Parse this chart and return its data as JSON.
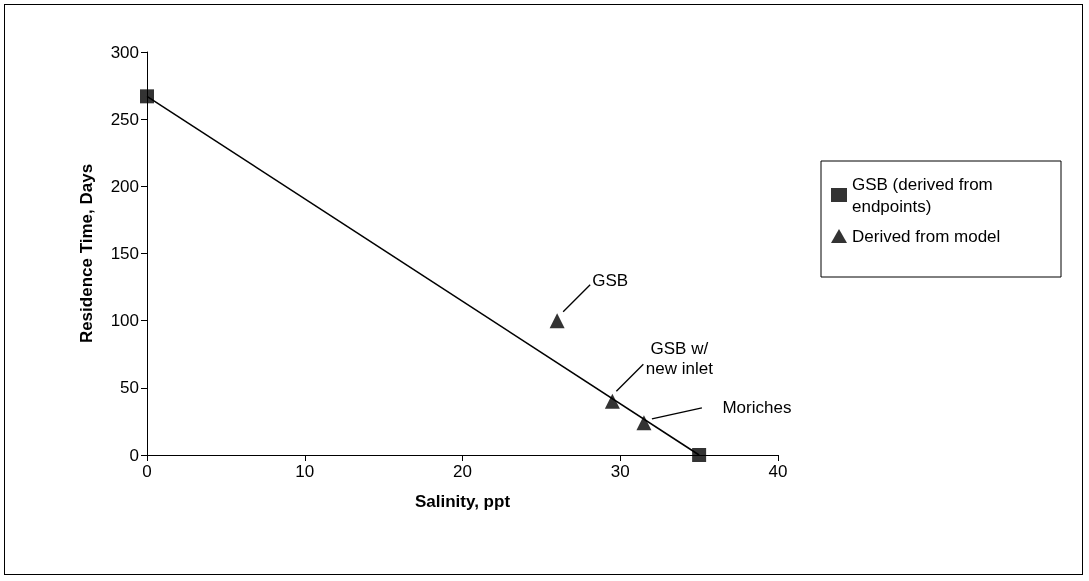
{
  "chart_data": {
    "type": "scatter",
    "xlabel": "Salinity, ppt",
    "ylabel": "Residence Time, Days",
    "xlim": [
      0,
      40
    ],
    "xticks": [
      0,
      10,
      20,
      30,
      40
    ],
    "ylim": [
      0,
      300
    ],
    "yticks": [
      0,
      50,
      100,
      150,
      200,
      250,
      300
    ],
    "grid": false,
    "legend": "right",
    "series": [
      {
        "type": "line",
        "color": "#000000",
        "marker": "none",
        "x": [
          0,
          35
        ],
        "values": [
          267,
          0
        ]
      },
      {
        "name": "GSB (derived from endpoints)",
        "color": "#000000",
        "marker": "square",
        "x": [
          0,
          35
        ],
        "values": [
          267,
          0
        ]
      },
      {
        "name": "Derived from model",
        "color": "#000000",
        "marker": "triangle",
        "x": [
          26,
          29.5,
          31.5
        ],
        "values": [
          100,
          40,
          24
        ]
      }
    ],
    "annotations": [
      {
        "text": "GSB",
        "x": 26,
        "y": 100
      },
      {
        "text": "GSB w/ new inlet",
        "x": 29.5,
        "y": 40
      },
      {
        "text": "Moriches",
        "x": 31.5,
        "y": 24
      }
    ]
  }
}
